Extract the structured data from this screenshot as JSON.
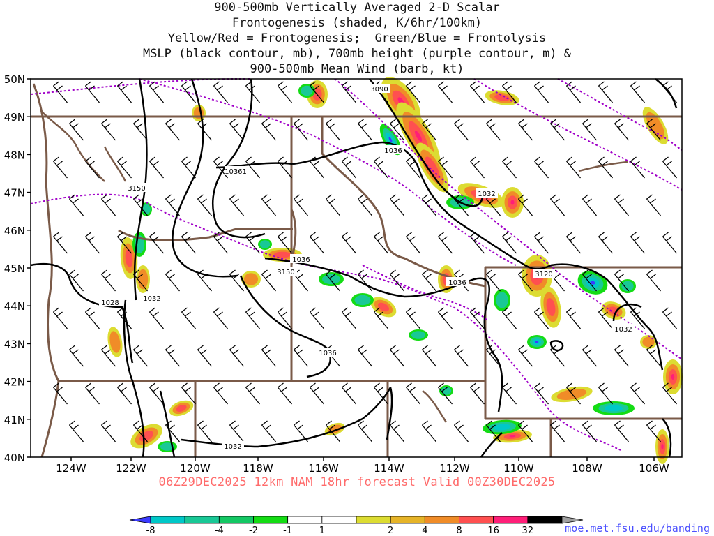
{
  "title_lines": [
    "900-500mb Vertically Averaged 2-D Scalar",
    "Frontogenesis (shaded, K/6hr/100km)",
    "Yellow/Red = Frontogenesis;  Green/Blue = Frontolysis",
    "MSLP (black contour, mb), 700mb height (purple contour, m) &",
    "900-500mb Mean Wind (barb, kt)"
  ],
  "lat_labels": [
    "50N",
    "49N",
    "48N",
    "47N",
    "46N",
    "45N",
    "44N",
    "43N",
    "42N",
    "41N",
    "40N"
  ],
  "lon_labels": [
    "124W",
    "122W",
    "120W",
    "118W",
    "116W",
    "114W",
    "112W",
    "110W",
    "108W",
    "106W"
  ],
  "footer": "06Z29DEC2025 12km NAM 18hr forecast Valid 00Z30DEC2025",
  "credit": "moe.met.fsu.edu/banding",
  "colorbar": {
    "colors": [
      "#3b3bff",
      "#00c8c8",
      "#19c896",
      "#14c864",
      "#14dc14",
      "#ffffff",
      "#ffffff",
      "#dcdc32",
      "#e6b428",
      "#f08c28",
      "#ff5050",
      "#ff1e78",
      "#000000",
      "#a0a0a0"
    ],
    "labels": [
      "-8",
      "-4",
      "-2",
      "-1",
      "1",
      "2",
      "4",
      "8",
      "16",
      "32"
    ]
  },
  "contour_labels": [
    {
      "text": "3090",
      "layer": "700mb"
    },
    {
      "text": "1036",
      "layer": "mslp"
    },
    {
      "text": "10361",
      "layer": "mslp"
    },
    {
      "text": "3150",
      "layer": "700mb"
    },
    {
      "text": "1032",
      "layer": "mslp"
    },
    {
      "text": "1036",
      "layer": "mslp"
    },
    {
      "text": "3150",
      "layer": "700mb"
    },
    {
      "text": "1036",
      "layer": "mslp"
    },
    {
      "text": "3120",
      "layer": "700mb"
    },
    {
      "text": "1028",
      "layer": "mslp"
    },
    {
      "text": "1032",
      "layer": "mslp"
    },
    {
      "text": "1036",
      "layer": "mslp"
    },
    {
      "text": "1032",
      "layer": "mslp"
    },
    {
      "text": "1032",
      "layer": "mslp"
    }
  ],
  "colors": {
    "state_border": "#7a5a48",
    "mslp": "#000000",
    "height700": "#a000c8",
    "barb": "#000000",
    "footer": "#ff6b6b",
    "credit": "#4b50ff"
  }
}
